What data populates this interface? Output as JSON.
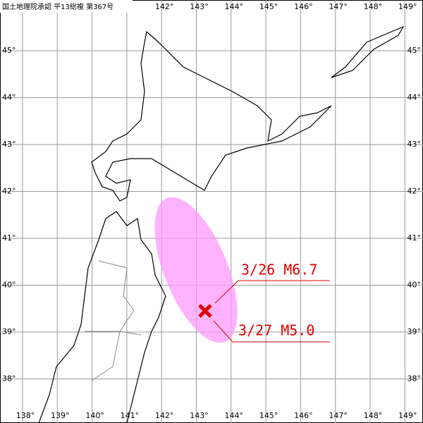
{
  "header": {
    "note": "国土地理院承認 平13総複 第367号"
  },
  "longitudes": [
    {
      "value": 138,
      "label": "138°"
    },
    {
      "value": 139,
      "label": "139°"
    },
    {
      "value": 140,
      "label": "140°"
    },
    {
      "value": 141,
      "label": "141°"
    },
    {
      "value": 142,
      "label": "142°"
    },
    {
      "value": 143,
      "label": "143°"
    },
    {
      "value": 144,
      "label": "144°"
    },
    {
      "value": 145,
      "label": "145°"
    },
    {
      "value": 146,
      "label": "146°"
    },
    {
      "value": 147,
      "label": "147°"
    },
    {
      "value": 148,
      "label": "148°"
    },
    {
      "value": 149,
      "label": "149°"
    }
  ],
  "latitudes": [
    {
      "value": 45,
      "label": "45°"
    },
    {
      "value": 44,
      "label": "44°"
    },
    {
      "value": 43,
      "label": "43°"
    },
    {
      "value": 42,
      "label": "42°"
    },
    {
      "value": 41,
      "label": "41°"
    },
    {
      "value": 40,
      "label": "40°"
    },
    {
      "value": 39,
      "label": "39°"
    },
    {
      "value": 38,
      "label": "38°"
    }
  ],
  "annotations": [
    {
      "text": "3/26 M6.7"
    },
    {
      "text": "3/27 M5.0"
    }
  ]
}
